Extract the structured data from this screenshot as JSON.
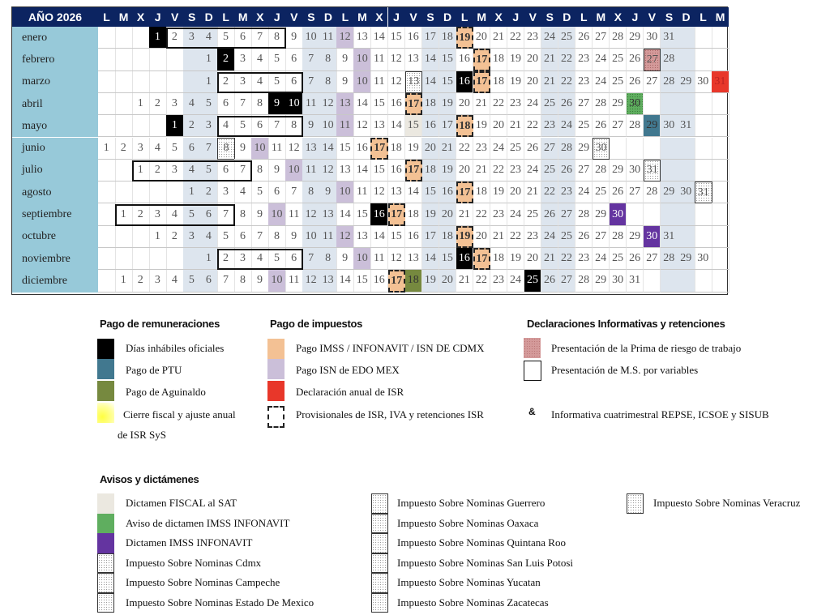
{
  "year_label": "AÑO 2026",
  "weekdays": [
    "L",
    "M",
    "X",
    "J",
    "V",
    "S",
    "D",
    "L",
    "M",
    "X",
    "J",
    "V",
    "S",
    "D",
    "L",
    "M",
    "X",
    "J",
    "V",
    "S",
    "D",
    "L",
    "M",
    "X",
    "J",
    "V",
    "S",
    "D",
    "L",
    "M",
    "X",
    "J",
    "V",
    "S",
    "D",
    "L",
    "M"
  ],
  "colors": {
    "header": "#0c2461",
    "month_col": "#97c9d9",
    "weekend": "#dde5ee",
    "holiday": "#000000",
    "ptu": "#41788f",
    "aguinaldo": "#76893f",
    "cierre": "#ffff55",
    "imss": "#f3c194",
    "isn": "#cbbfd9",
    "anual": "#e8372a",
    "prima": "#d49a9a",
    "fiscal": "#ebe8e0",
    "aviso": "#5fae5f",
    "dictamen": "#6434a0"
  },
  "months": [
    {
      "name": "enero",
      "first_weekday": "J",
      "days": 31,
      "marks": {
        "1": "holiday",
        "12": "isn",
        "19": "imss"
      },
      "ms_ranges": [
        [
          2,
          8
        ]
      ]
    },
    {
      "name": "febrero",
      "first_weekday": "D",
      "days": 28,
      "marks": {
        "2": "holiday",
        "10": "isn",
        "17": "imss",
        "27": "prima"
      },
      "ms_ranges": []
    },
    {
      "name": "marzo",
      "first_weekday": "D",
      "days": 31,
      "marks": {
        "10": "isn",
        "13": "state",
        "16": "holiday",
        "17": "imss",
        "31": "anual"
      },
      "ms_ranges": [
        [
          2,
          6
        ]
      ]
    },
    {
      "name": "abril",
      "first_weekday": "X",
      "days": 30,
      "marks": {
        "9": "holiday",
        "10": "holiday",
        "13": "isn",
        "17": "imss",
        "30": "aviso"
      },
      "ms_ranges": []
    },
    {
      "name": "mayo",
      "first_weekday": "V",
      "days": 31,
      "marks": {
        "1": "holiday",
        "11": "isn",
        "15": "fiscal",
        "18": "imss",
        "29": "ptu"
      },
      "ms_ranges": [
        [
          4,
          8
        ]
      ]
    },
    {
      "name": "junio",
      "first_weekday": "L",
      "days": 30,
      "marks": {
        "8": "state",
        "10": "isn",
        "17": "imss",
        "30": "state"
      },
      "ms_ranges": []
    },
    {
      "name": "julio",
      "first_weekday": "X",
      "days": 31,
      "marks": {
        "10": "isn",
        "17": "imss",
        "31": "state"
      },
      "ms_ranges": [
        [
          1,
          7
        ]
      ]
    },
    {
      "name": "agosto",
      "first_weekday": "S",
      "days": 31,
      "marks": {
        "10": "isn",
        "17": "imss",
        "31": "state"
      },
      "ms_ranges": []
    },
    {
      "name": "septiembre",
      "first_weekday": "M",
      "days": 30,
      "marks": {
        "10": "isn",
        "16": "holiday",
        "17": "imss",
        "30": "dictamen"
      },
      "ms_ranges": [
        [
          1,
          7
        ]
      ]
    },
    {
      "name": "octubre",
      "first_weekday": "J",
      "days": 31,
      "marks": {
        "12": "isn",
        "19": "imss",
        "30": "dictamen"
      },
      "ms_ranges": []
    },
    {
      "name": "noviembre",
      "first_weekday": "D",
      "days": 30,
      "marks": {
        "10": "isn",
        "16": "holiday",
        "17": "imss"
      },
      "ms_ranges": [
        [
          2,
          6
        ]
      ]
    },
    {
      "name": "diciembre",
      "first_weekday": "M",
      "days": 31,
      "marks": {
        "10": "isn",
        "17": "imss",
        "18": "aguinaldo",
        "25": "holiday"
      },
      "ms_ranges": []
    }
  ],
  "legend": {
    "remuneraciones": {
      "title": "Pago de remuneraciones",
      "items": [
        "Días inhábiles oficiales",
        "Pago de PTU",
        "Pago de Aguinaldo",
        "Cierre fiscal y ajuste anual"
      ],
      "extra": "de ISR SyS"
    },
    "impuestos": {
      "title": "Pago de impuestos",
      "items": [
        "Pago IMSS / INFONAVIT / ISN DE CDMX",
        "Pago ISN de EDO MEX",
        "Declaración anual de ISR",
        "Provisionales de ISR, IVA y retenciones ISR"
      ]
    },
    "informativas": {
      "title": "Declaraciones Informativas y retenciones",
      "items": [
        "Presentación de la Prima de riesgo de trabajo",
        "Presentación de M.S. por variables",
        "Informativa cuatrimestral REPSE, ICSOE y SISUB"
      ],
      "amp": "&"
    },
    "avisos": {
      "title": "Avisos y dictámenes",
      "col1": [
        "Dictamen FISCAL al SAT",
        "Aviso de dictamen IMSS INFONAVIT",
        "Dictamen IMSS INFONAVIT",
        "Impuesto Sobre Nominas Cdmx",
        "Impuesto Sobre Nominas Campeche",
        "Impuesto Sobre Nominas Estado De Mexico"
      ],
      "col2": [
        "Impuesto Sobre Nominas Guerrero",
        "Impuesto Sobre Nominas Oaxaca",
        "Impuesto Sobre Nominas Quintana Roo",
        "Impuesto Sobre Nominas San Luis Potosi",
        "Impuesto Sobre Nominas Yucatan",
        "Impuesto Sobre Nominas Zacatecas"
      ],
      "col3": [
        "Impuesto Sobre Nominas Veracruz"
      ]
    }
  }
}
